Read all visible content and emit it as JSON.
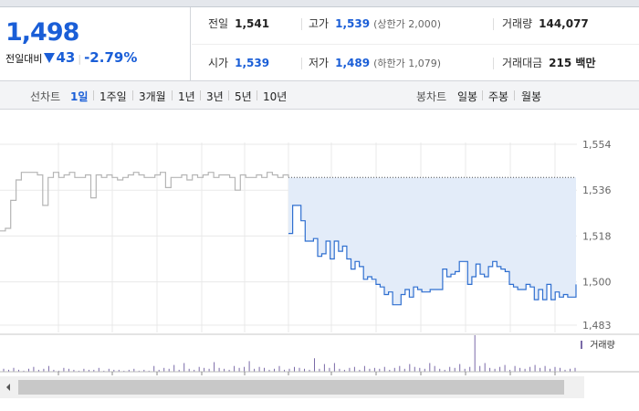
{
  "summary": {
    "price": "1,498",
    "change_label": "전일대비",
    "change_amount": "43",
    "change_percent": "-2.79%",
    "prev_close_label": "전일",
    "prev_close": "1,541",
    "high_label": "고가",
    "high": "1,539",
    "upper_limit": "(상한가 2,000)",
    "volume_label": "거래량",
    "volume": "144,077",
    "open_label": "시가",
    "open": "1,539",
    "low_label": "저가",
    "low": "1,489",
    "lower_limit": "(하한가 1,079)",
    "amount_label": "거래대금",
    "amount": "215 백만"
  },
  "tabs": {
    "line_title": "선차트",
    "line_tabs": [
      "1일",
      "1주일",
      "3개월",
      "1년",
      "3년",
      "5년",
      "10년"
    ],
    "candle_title": "봉차트",
    "candle_tabs": [
      "일봉",
      "주봉",
      "월봉"
    ],
    "active": "1일"
  },
  "colors": {
    "accent": "#1a5ed7",
    "line": "#2f6fd0",
    "prev_line": "#b5b5b5",
    "fill": "#e3ecf9",
    "volume": "#7a6aa8"
  },
  "chart_data": {
    "type": "line",
    "y_ticks": [
      "1,554",
      "1,536",
      "1,518",
      "1,500",
      "1,483"
    ],
    "ylim": [
      1483,
      1554
    ],
    "volume_legend": "거래량",
    "prev_day_reference": 1541,
    "series": [
      {
        "values": [
          1520,
          1521,
          1532,
          1540,
          1543,
          1543,
          1543,
          1542,
          1530,
          1541,
          1543,
          1541,
          1542,
          1543,
          1541,
          1541,
          1542,
          1533,
          1542,
          1541,
          1542,
          1541,
          1540,
          1541,
          1542,
          1543,
          1542,
          1541,
          1541,
          1542,
          1543,
          1537,
          1541,
          1541,
          1542,
          1540,
          1542,
          1541,
          1542,
          1543,
          1541,
          1542,
          1542,
          1541,
          1536,
          1542,
          1541,
          1541,
          1542,
          1541,
          1543,
          1542,
          1541,
          1542,
          1541
        ]
      },
      {
        "values": [
          1519,
          1530,
          1530,
          1524,
          1516,
          1516,
          1517,
          1510,
          1511,
          1516,
          1509,
          1516,
          1512,
          1514,
          1509,
          1505,
          1508,
          1506,
          1501,
          1502,
          1501,
          1499,
          1498,
          1495,
          1496,
          1491,
          1491,
          1495,
          1497,
          1494,
          1498,
          1497,
          1496,
          1496,
          1497,
          1497,
          1497,
          1505,
          1502,
          1503,
          1504,
          1508,
          1508,
          1499,
          1502,
          1507,
          1503,
          1502,
          1506,
          1508,
          1506,
          1505,
          1504,
          1499,
          1498,
          1497,
          1497,
          1499,
          1498,
          1493,
          1497,
          1493,
          1499,
          1493,
          1496,
          1494,
          1495,
          1494,
          1494,
          1499
        ]
      }
    ],
    "volume": [
      3,
      2,
      4,
      2,
      1,
      3,
      5,
      2,
      3,
      6,
      2,
      1,
      4,
      3,
      2,
      1,
      3,
      2,
      2,
      4,
      1,
      3,
      2,
      2,
      1,
      2,
      3,
      1,
      2,
      1,
      6,
      2,
      4,
      3,
      7,
      2,
      9,
      3,
      2,
      5,
      4,
      3,
      10,
      4,
      3,
      2,
      6,
      4,
      5,
      11,
      3,
      5,
      4,
      2,
      3,
      6,
      2,
      3,
      5,
      4,
      3,
      2,
      14,
      3,
      8,
      4,
      9,
      3,
      2,
      4,
      5,
      2,
      6,
      3,
      4,
      3,
      5,
      2,
      4,
      6,
      3,
      8,
      5,
      4,
      3,
      9,
      6,
      3,
      2,
      5,
      4,
      8,
      3,
      5,
      38,
      6,
      9,
      4,
      3,
      5,
      7,
      2,
      6,
      4,
      3,
      5,
      7,
      4,
      6,
      3,
      5,
      4,
      2,
      3,
      4
    ]
  }
}
